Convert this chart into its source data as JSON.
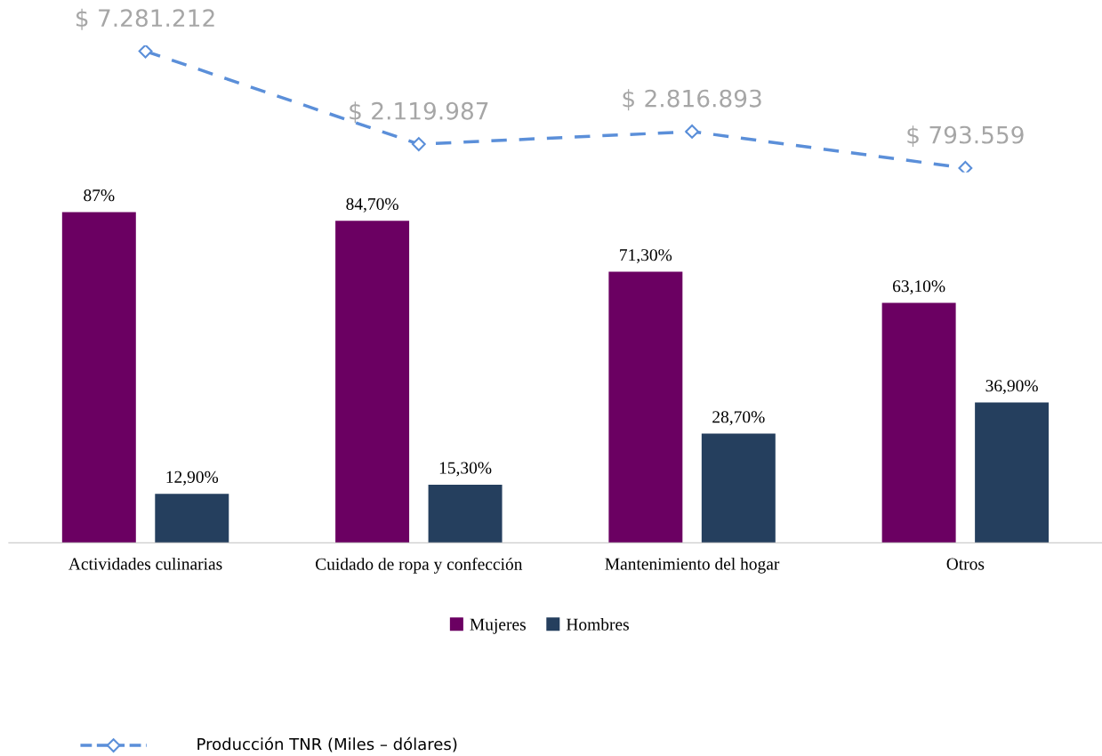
{
  "chart_data": [
    {
      "type": "line",
      "categories": [
        null,
        null,
        null,
        null
      ],
      "series": [
        {
          "name": "Producción TNR (Miles – dólares)",
          "color": "#5b8fd9",
          "values": [
            7281212,
            2119987,
            2816893,
            793559
          ],
          "value_labels": [
            "$ 7.281.212",
            "$ 2.119.987",
            "$ 2.816.893",
            "$ 793.559"
          ]
        }
      ],
      "marker": "diamond",
      "line_style": "dashed",
      "legend": "bottom left"
    },
    {
      "type": "bar",
      "categories": [
        "Actividades culinarias",
        "Cuidado de ropa y confección",
        "Mantenimiento del hogar",
        "Otros"
      ],
      "series": [
        {
          "name": "Mujeres",
          "color": "#6b0062",
          "values": [
            87,
            84.7,
            71.3,
            63.1
          ],
          "value_labels": [
            "87%",
            "84,70%",
            "71,30%",
            "63,10%"
          ]
        },
        {
          "name": "Hombres",
          "color": "#253f5e",
          "values": [
            12.9,
            15.3,
            28.7,
            36.9
          ],
          "value_labels": [
            "12,90%",
            "15,30%",
            "28,70%",
            "36,90%"
          ]
        }
      ],
      "legend": "bottom"
    }
  ]
}
